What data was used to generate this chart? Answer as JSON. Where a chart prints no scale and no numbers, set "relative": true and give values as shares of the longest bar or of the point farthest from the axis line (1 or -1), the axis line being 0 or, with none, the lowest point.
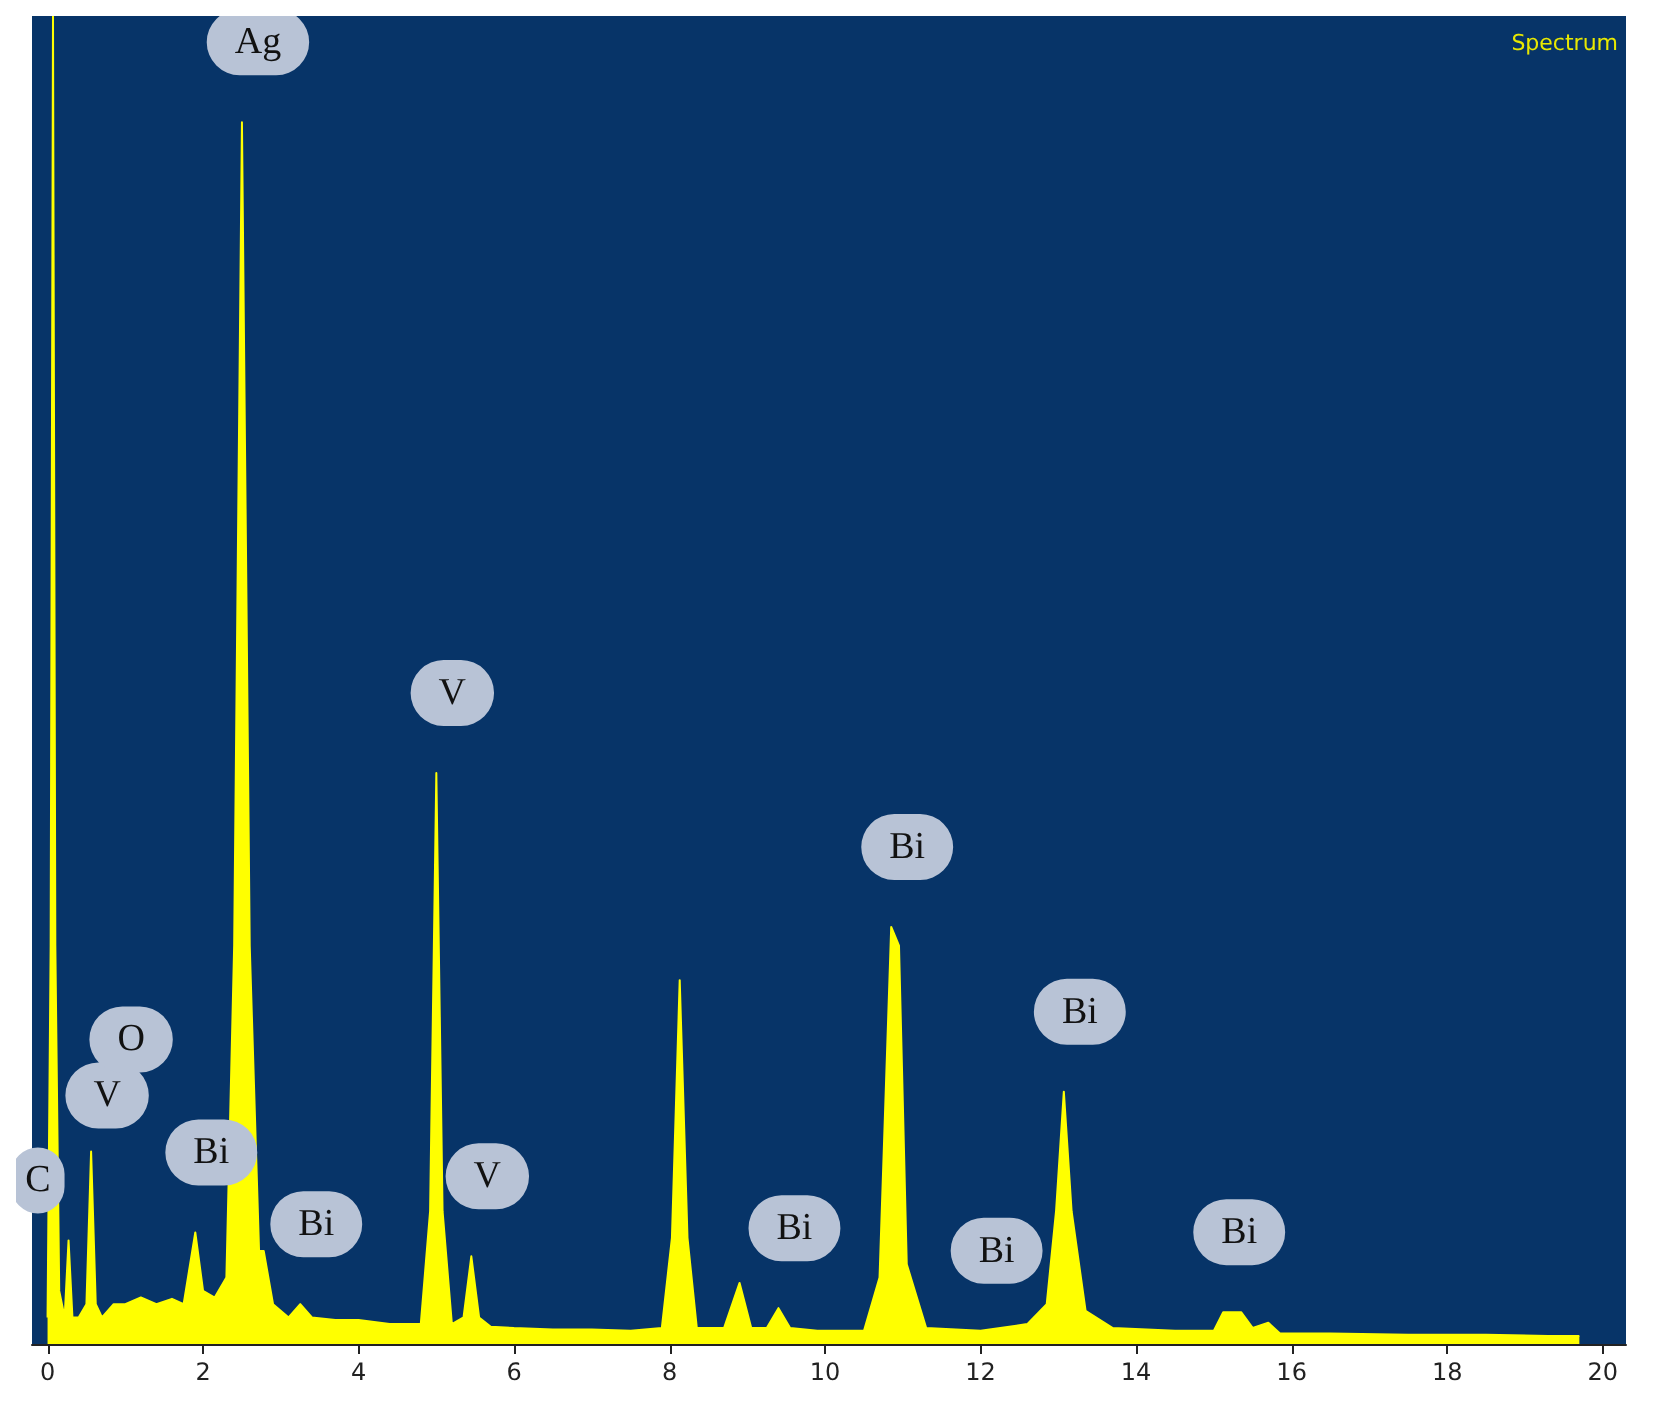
{
  "chart_data": {
    "type": "area",
    "relative": true,
    "color": "#ffff00",
    "x": [
      0,
      0.04,
      0.07,
      0.1,
      0.15,
      0.22,
      0.27,
      0.32,
      0.4,
      0.5,
      0.56,
      0.62,
      0.7,
      0.85,
      1.0,
      1.2,
      1.4,
      1.6,
      1.75,
      1.9,
      2.0,
      2.15,
      2.3,
      2.4,
      2.5,
      2.6,
      2.72,
      2.78,
      2.9,
      3.1,
      3.25,
      3.4,
      3.7,
      4.0,
      4.4,
      4.8,
      4.92,
      5.0,
      5.08,
      5.2,
      5.35,
      5.45,
      5.55,
      5.7,
      6.0,
      6.5,
      7.0,
      7.5,
      7.9,
      8.03,
      8.13,
      8.23,
      8.35,
      8.7,
      8.9,
      9.05,
      9.25,
      9.4,
      9.55,
      9.9,
      10.5,
      10.7,
      10.85,
      10.95,
      11.05,
      11.3,
      12.0,
      12.6,
      12.85,
      12.97,
      13.07,
      13.17,
      13.35,
      13.7,
      14.5,
      15.0,
      15.12,
      15.35,
      15.5,
      15.7,
      15.85,
      16.5,
      17.5,
      18.5,
      19.3,
      19.7
    ],
    "values": [
      0.02,
      0.3,
      1,
      0.3,
      0.04,
      0.02,
      0.078,
      0.02,
      0.02,
      0.03,
      0.145,
      0.03,
      0.02,
      0.03,
      0.03,
      0.035,
      0.03,
      0.034,
      0.03,
      0.084,
      0.04,
      0.035,
      0.05,
      0.3,
      0.92,
      0.3,
      0.07,
      0.07,
      0.03,
      0.02,
      0.03,
      0.02,
      0.018,
      0.018,
      0.015,
      0.015,
      0.1,
      0.43,
      0.1,
      0.015,
      0.02,
      0.066,
      0.02,
      0.013,
      0.012,
      0.011,
      0.011,
      0.01,
      0.012,
      0.08,
      0.274,
      0.08,
      0.012,
      0.012,
      0.046,
      0.012,
      0.012,
      0.027,
      0.012,
      0.01,
      0.01,
      0.05,
      0.314,
      0.3,
      0.06,
      0.012,
      0.01,
      0.015,
      0.03,
      0.1,
      0.19,
      0.1,
      0.025,
      0.012,
      0.01,
      0.01,
      0.024,
      0.024,
      0.012,
      0.016,
      0.008,
      0.008,
      0.007,
      0.007,
      0.006,
      0.006
    ],
    "xlim": [
      -0.2,
      20.3
    ],
    "xticks": [
      0,
      2,
      4,
      6,
      8,
      10,
      12,
      14,
      16,
      18,
      20
    ],
    "annotations": [
      "Spectrum",
      {
        "text": "Ag",
        "x": 2.5,
        "y": 0.92
      },
      {
        "text": "V",
        "x": 5.0,
        "y": 0.43
      },
      {
        "text": "Bi",
        "x": 10.85,
        "y": 0.314
      },
      {
        "text": "Bi",
        "x": 13.07,
        "y": 0.19
      },
      {
        "text": "V",
        "x": 0.56,
        "y": 0.145
      },
      {
        "text": "O",
        "x": 0.56,
        "y": 0.145
      },
      {
        "text": "C",
        "x": 0.27,
        "y": 0.078
      },
      {
        "text": "Bi",
        "x": 1.9,
        "y": 0.084
      },
      {
        "text": "Bi",
        "x": 3.25,
        "y": 0.03
      },
      {
        "text": "V",
        "x": 5.45,
        "y": 0.066
      },
      {
        "text": "Bi",
        "x": 9.4,
        "y": 0.027
      },
      {
        "text": "Bi",
        "x": 12.0,
        "y": 0.01
      },
      {
        "text": "Bi",
        "x": 15.12,
        "y": 0.024
      }
    ]
  }
}
